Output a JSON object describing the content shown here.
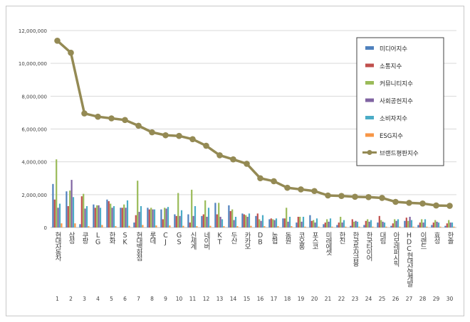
{
  "chart_data": {
    "type": "bar",
    "ylim": [
      0,
      12000000
    ],
    "y_ticks": [
      "0",
      "2,000,000",
      "4,000,000",
      "6,000,000",
      "8,000,000",
      "10,000,000",
      "12,000,000"
    ],
    "grid": true,
    "legend_position": "top-right",
    "categories": [
      "현대자동차",
      "삼성",
      "쿠팡",
      "LG",
      "한화",
      "SK",
      "현대백화점",
      "롯데",
      "CJ",
      "GS",
      "신세계",
      "네이버",
      "KT",
      "두산",
      "카카오",
      "DB",
      "농협",
      "동원",
      "코오롱",
      "포스코",
      "미래에셋",
      "한진",
      "한국투자금융",
      "한국타이어",
      "대림",
      "아모레퍼시픽",
      "HDC현대산업개발",
      "이랜드",
      "효성",
      "한솔"
    ],
    "ranks": [
      "1",
      "2",
      "3",
      "4",
      "5",
      "6",
      "7",
      "8",
      "9",
      "10",
      "11",
      "12",
      "13",
      "14",
      "15",
      "16",
      "17",
      "18",
      "19",
      "20",
      "21",
      "22",
      "23",
      "24",
      "25",
      "26",
      "27",
      "28",
      "29",
      "30"
    ],
    "series": [
      {
        "name": "미디어지수",
        "color": "#4f81bd",
        "kind": "bar",
        "values": [
          2650000,
          2200000,
          200000,
          1400000,
          1700000,
          1200000,
          300000,
          1200000,
          1100000,
          800000,
          800000,
          700000,
          1500000,
          1350000,
          850000,
          700000,
          500000,
          550000,
          300000,
          750000,
          200000,
          150000,
          100000,
          150000,
          300000,
          100000,
          400000,
          150000,
          150000,
          100000
        ]
      },
      {
        "name": "소통지수",
        "color": "#c0504d",
        "kind": "bar",
        "values": [
          1700000,
          1300000,
          1900000,
          1200000,
          1600000,
          1200000,
          750000,
          1100000,
          500000,
          700000,
          300000,
          800000,
          800000,
          1000000,
          800000,
          850000,
          550000,
          550000,
          650000,
          400000,
          300000,
          300000,
          500000,
          400000,
          700000,
          250000,
          600000,
          300000,
          300000,
          250000
        ]
      },
      {
        "name": "커뮤니티지수",
        "color": "#9bbb59",
        "kind": "bar",
        "values": [
          4150000,
          2250000,
          2050000,
          1350000,
          1450000,
          1400000,
          2850000,
          1200000,
          1200000,
          2100000,
          2300000,
          1650000,
          1500000,
          1100000,
          750000,
          500000,
          500000,
          1200000,
          650000,
          450000,
          500000,
          650000,
          350000,
          500000,
          450000,
          500000,
          400000,
          500000,
          450000,
          450000
        ]
      },
      {
        "name": "사회공헌지수",
        "color": "#8064a2",
        "kind": "bar",
        "values": [
          1200000,
          2900000,
          1150000,
          1350000,
          1200000,
          1200000,
          950000,
          1100000,
          1150000,
          700000,
          700000,
          650000,
          650000,
          450000,
          650000,
          400000,
          450000,
          350000,
          350000,
          300000,
          350000,
          300000,
          400000,
          350000,
          350000,
          400000,
          650000,
          300000,
          350000,
          300000
        ]
      },
      {
        "name": "소비자지수",
        "color": "#4bacc6",
        "kind": "bar",
        "values": [
          1450000,
          1850000,
          1300000,
          1200000,
          1300000,
          1650000,
          1300000,
          1100000,
          1250000,
          1050000,
          1300000,
          1200000,
          500000,
          650000,
          850000,
          750000,
          550000,
          650000,
          650000,
          550000,
          550000,
          450000,
          350000,
          450000,
          300000,
          500000,
          450000,
          500000,
          300000,
          300000
        ]
      },
      {
        "name": "ESG지수",
        "color": "#f79646",
        "kind": "bar",
        "values": [
          250000,
          250000,
          80000,
          150000,
          80000,
          100000,
          150000,
          120000,
          120000,
          100000,
          80000,
          100000,
          80000,
          80000,
          100000,
          80000,
          80000,
          80000,
          50000,
          50000,
          50000,
          50000,
          50000,
          50000,
          50000,
          50000,
          50000,
          50000,
          50000,
          50000
        ]
      },
      {
        "name": "브랜드평판지수",
        "color": "#948a54",
        "kind": "line",
        "values": [
          11380000,
          10650000,
          6950000,
          6750000,
          6650000,
          6550000,
          6200000,
          5800000,
          5620000,
          5580000,
          5380000,
          4980000,
          4400000,
          4150000,
          3880000,
          3000000,
          2820000,
          2420000,
          2320000,
          2220000,
          1950000,
          1920000,
          1870000,
          1850000,
          1800000,
          1560000,
          1500000,
          1460000,
          1340000,
          1320000
        ]
      }
    ]
  }
}
